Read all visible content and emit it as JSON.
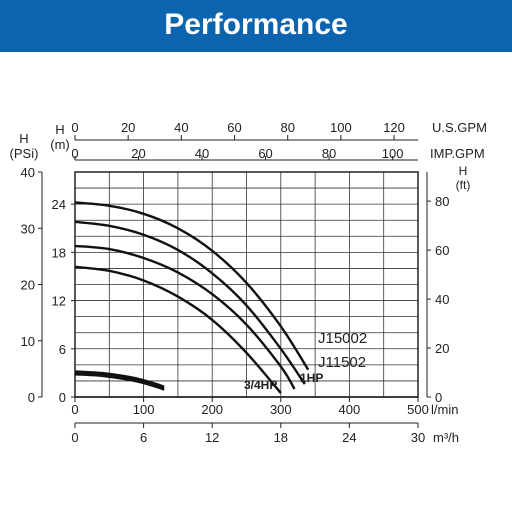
{
  "header": {
    "title": "Performance"
  },
  "chart_data": {
    "type": "line",
    "x_axes": {
      "usgpm": {
        "label": "U.S.GPM",
        "ticks": [
          0,
          20,
          40,
          60,
          80,
          100,
          120
        ],
        "max": 129
      },
      "impgpm": {
        "label": "IMP.GPM",
        "ticks": [
          0,
          20,
          40,
          60,
          80,
          100
        ],
        "max": 108
      },
      "lmin": {
        "label": "l/min",
        "ticks": [
          0,
          100,
          200,
          300,
          400,
          500
        ],
        "max": 500
      },
      "m3h": {
        "label": "m³/h",
        "ticks": [
          0,
          6,
          12,
          18,
          24,
          30
        ],
        "max": 30
      }
    },
    "y_axes": {
      "psi": {
        "label_line1": "H",
        "label_line2": "(PSi)",
        "ticks": [
          0,
          10,
          20,
          30,
          40
        ],
        "max": 40
      },
      "m": {
        "label_line1": "H",
        "label_line2": "(m)",
        "ticks": [
          0,
          6,
          12,
          18,
          24
        ],
        "max": 28
      },
      "ft": {
        "label_line1": "H",
        "label_line2": "(ft)",
        "ticks": [
          0,
          20,
          40,
          60,
          80
        ],
        "max": 91.9
      }
    },
    "grid": true,
    "x_unit_of_series": "l/min",
    "y_unit_of_series": "m",
    "series": [
      {
        "name": "J15002",
        "stroke": "#111111",
        "x": [
          0,
          50,
          100,
          150,
          200,
          250,
          300,
          340
        ],
        "y": [
          24.2,
          23.8,
          22.8,
          21.0,
          18.2,
          14.2,
          8.8,
          3.4
        ]
      },
      {
        "name": "J11502",
        "stroke": "#111111",
        "x": [
          0,
          50,
          100,
          150,
          200,
          250,
          300,
          335
        ],
        "y": [
          21.8,
          21.3,
          20.2,
          18.3,
          15.4,
          11.4,
          6.0,
          1.6
        ]
      },
      {
        "name": "1HP",
        "stroke": "#111111",
        "x": [
          0,
          50,
          100,
          150,
          200,
          250,
          300,
          320
        ],
        "y": [
          18.8,
          18.4,
          17.3,
          15.5,
          12.8,
          9.0,
          3.8,
          1.0
        ]
      },
      {
        "name": "3/4HP",
        "stroke": "#111111",
        "x": [
          0,
          50,
          100,
          150,
          200,
          250,
          300
        ],
        "y": [
          16.2,
          15.7,
          14.5,
          12.5,
          9.6,
          5.5,
          0.5
        ]
      },
      {
        "name": "",
        "stroke": "#111111",
        "x": [
          0,
          40,
          80,
          100,
          120,
          130
        ],
        "y": [
          3.2,
          3.0,
          2.5,
          2.1,
          1.6,
          1.3
        ]
      },
      {
        "name": "",
        "stroke": "#111111",
        "x": [
          0,
          40,
          80,
          100,
          120,
          130
        ],
        "y": [
          3.0,
          2.8,
          2.3,
          1.9,
          1.4,
          1.1
        ]
      },
      {
        "name": "",
        "stroke": "#111111",
        "x": [
          0,
          40,
          80,
          100,
          120,
          130
        ],
        "y": [
          2.8,
          2.6,
          2.1,
          1.7,
          1.2,
          0.9
        ]
      }
    ],
    "labels": [
      {
        "text": "J15002",
        "bold": false
      },
      {
        "text": "J11502",
        "bold": false
      },
      {
        "text": "1HP",
        "bold": true
      },
      {
        "text": "3/4HP",
        "bold": true
      }
    ]
  }
}
